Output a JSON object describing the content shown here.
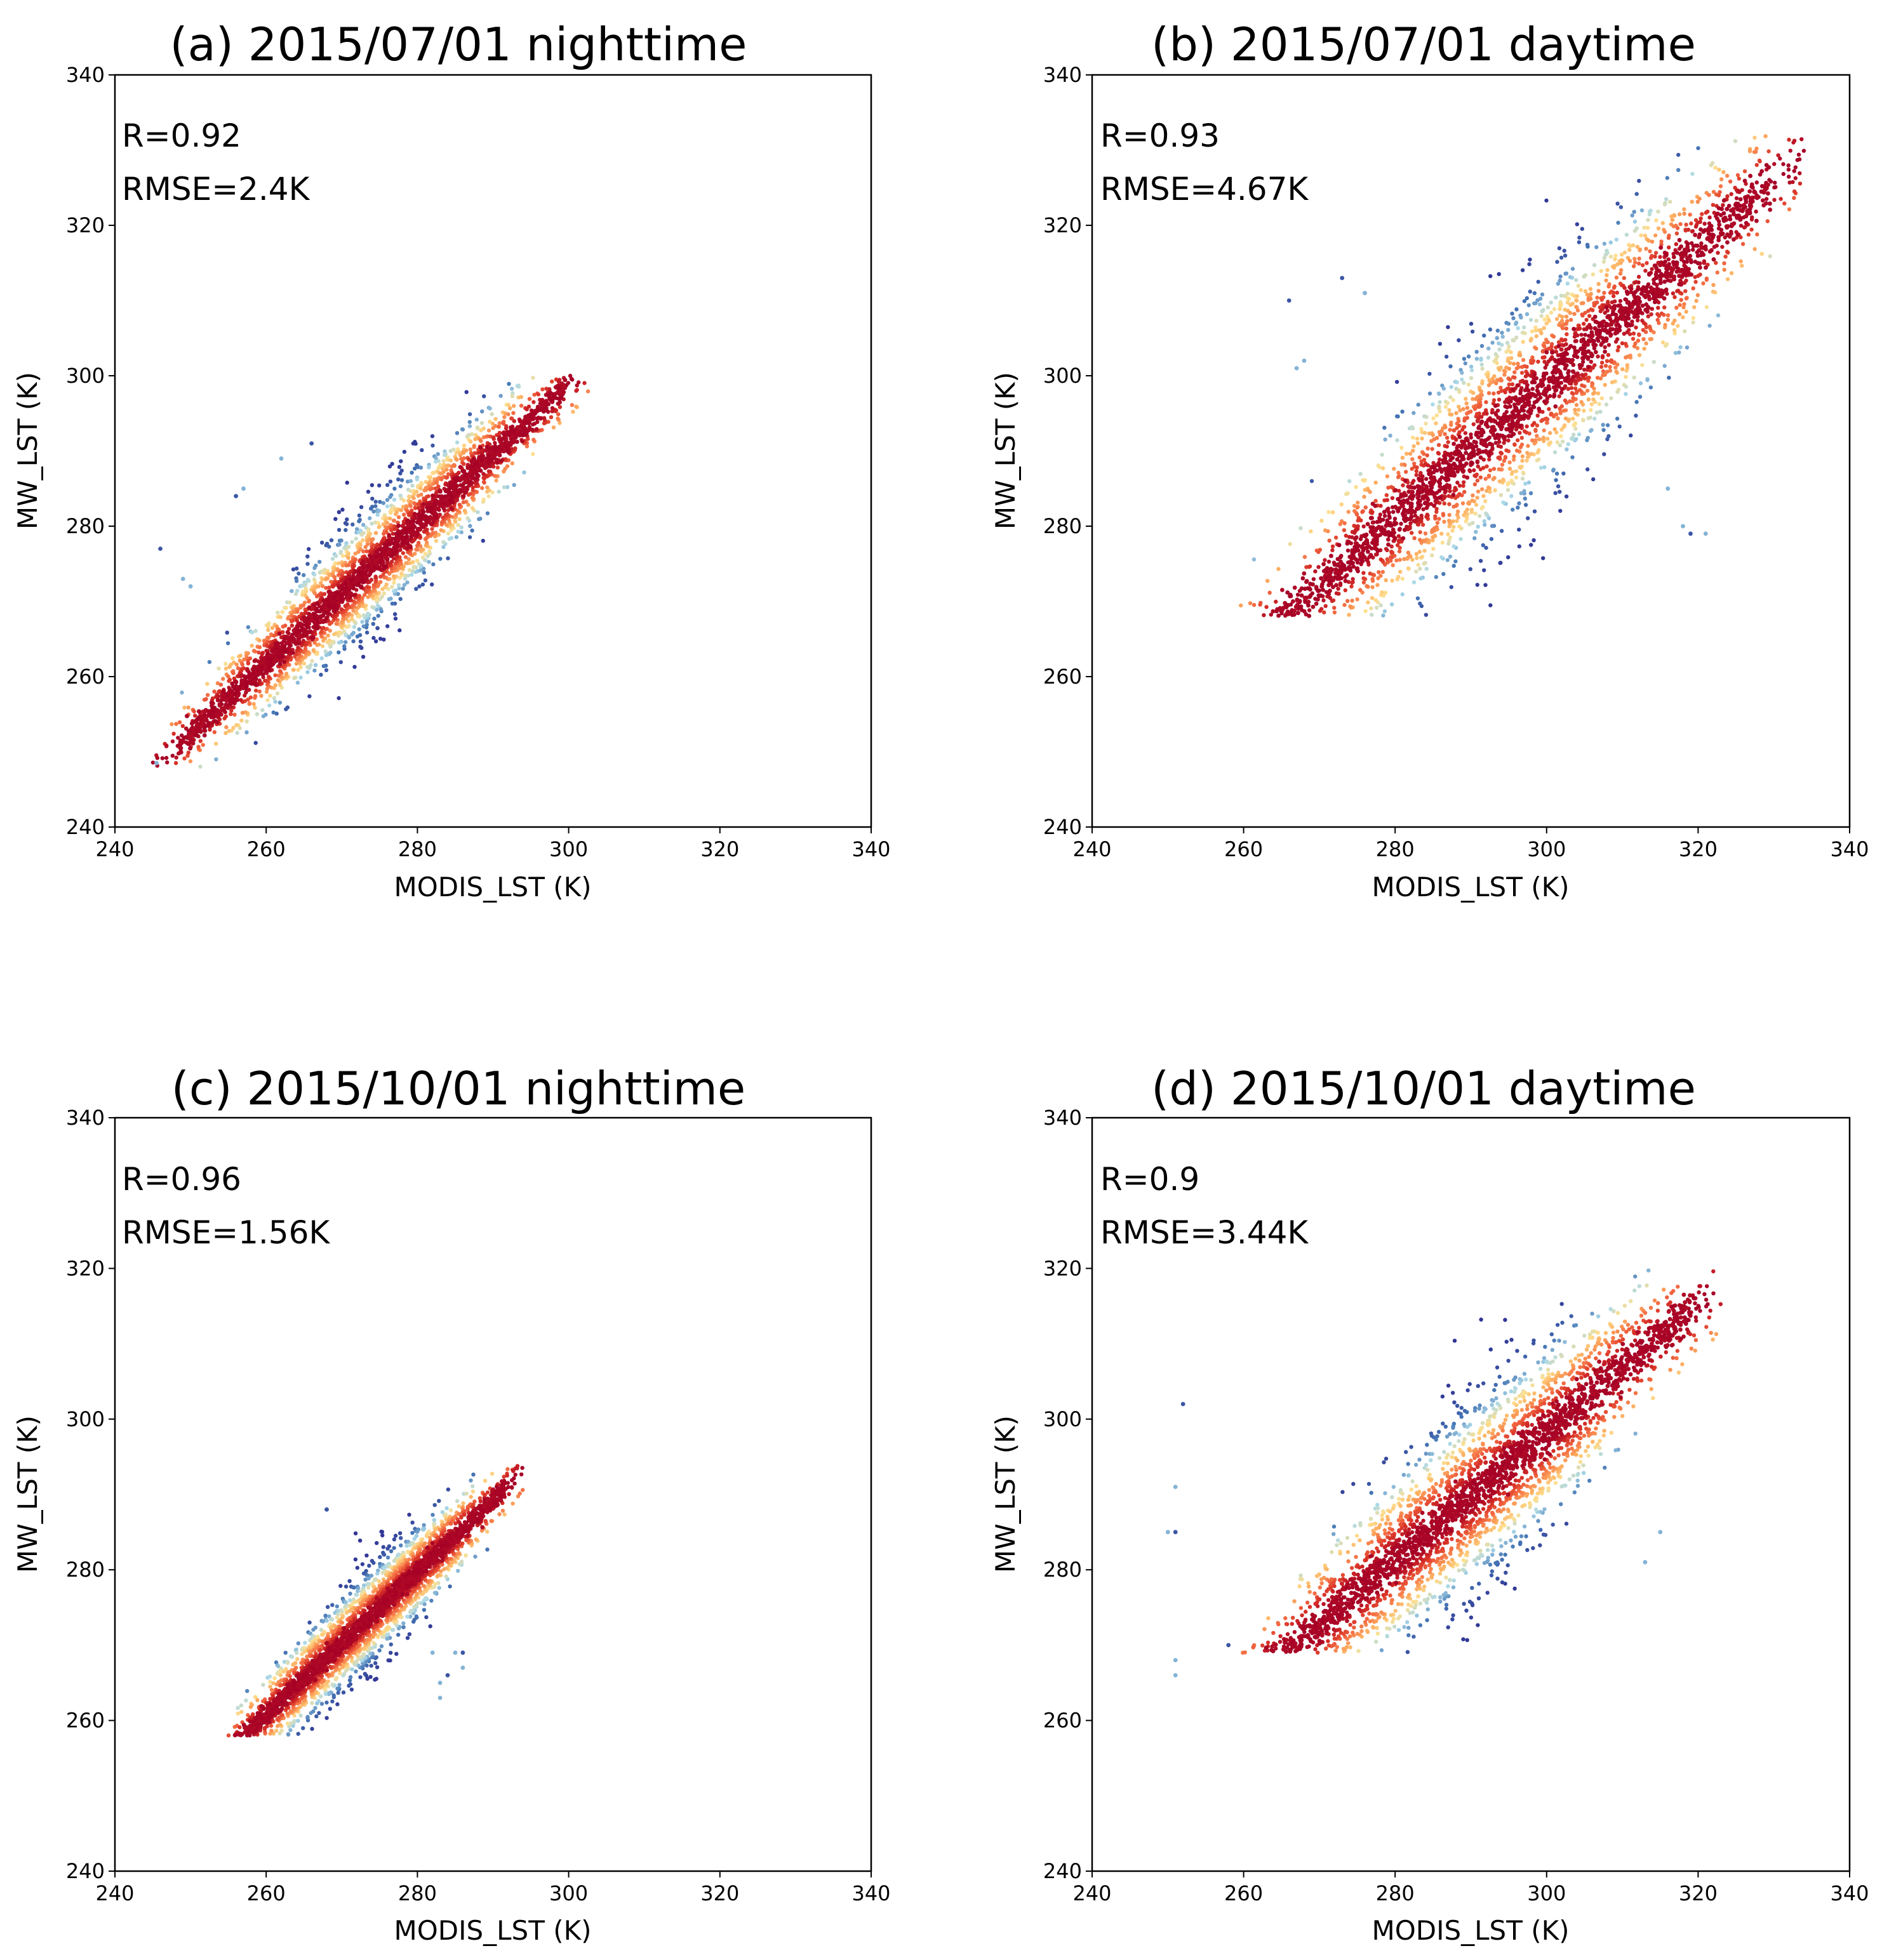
{
  "chart_data": [
    {
      "type": "scatter",
      "title": "(a) 2015/07/01 nighttime",
      "xlabel": "MODIS_LST (K)",
      "ylabel": "MW_LST (K)",
      "xlim": [
        240,
        340
      ],
      "ylim": [
        240,
        340
      ],
      "xticks": [
        "240",
        "260",
        "280",
        "300",
        "320",
        "340"
      ],
      "yticks": [
        "240",
        "260",
        "280",
        "300",
        "320",
        "340"
      ],
      "annotations": [
        "R=0.92",
        "RMSE=2.4K"
      ],
      "colormap": "density (blue → yellow → red)",
      "cloud": {
        "x_range": [
          245,
          303
        ],
        "y_range": [
          248,
          300
        ],
        "slope": 0.93,
        "intercept_at_x": [
          270,
          271
        ],
        "spread": 4.5
      },
      "outliers": [
        [
          246,
          277
        ],
        [
          249,
          273
        ],
        [
          250,
          272
        ],
        [
          256,
          284
        ],
        [
          257,
          285
        ],
        [
          262,
          289
        ],
        [
          266,
          291
        ],
        [
          245.5,
          248.5
        ]
      ]
    },
    {
      "type": "scatter",
      "title": "(b) 2015/07/01 daytime",
      "xlabel": "MODIS_LST (K)",
      "ylabel": "MW_LST (K)",
      "xlim": [
        240,
        340
      ],
      "ylim": [
        240,
        340
      ],
      "xticks": [
        "240",
        "260",
        "280",
        "300",
        "320",
        "340"
      ],
      "yticks": [
        "240",
        "260",
        "280",
        "300",
        "320",
        "340"
      ],
      "annotations": [
        "R=0.93",
        "RMSE=4.67K"
      ],
      "colormap": "density (blue → yellow → red)",
      "cloud": {
        "x_range": [
          259,
          334
        ],
        "y_range": [
          268,
          332
        ],
        "slope": 0.9,
        "intercept_at_x": [
          300,
          299
        ],
        "spread": 8
      },
      "outliers": [
        [
          266,
          310
        ],
        [
          267,
          301
        ],
        [
          268,
          302
        ],
        [
          273,
          313
        ],
        [
          276,
          311
        ],
        [
          318,
          280
        ],
        [
          319,
          279
        ],
        [
          321,
          279
        ],
        [
          316,
          285
        ]
      ]
    },
    {
      "type": "scatter",
      "title": "(c) 2015/10/01 nighttime",
      "xlabel": "MODIS_LST (K)",
      "ylabel": "MW_LST (K)",
      "xlim": [
        240,
        340
      ],
      "ylim": [
        240,
        340
      ],
      "xticks": [
        "240",
        "260",
        "280",
        "300",
        "320",
        "340"
      ],
      "yticks": [
        "240",
        "260",
        "280",
        "300",
        "320",
        "340"
      ],
      "annotations": [
        "R=0.96",
        "RMSE=1.56K"
      ],
      "colormap": "density (blue → yellow → red)",
      "cloud": {
        "x_range": [
          252,
          294
        ],
        "y_range": [
          258,
          294
        ],
        "slope": 0.95,
        "intercept_at_x": [
          275,
          275
        ],
        "spread": 3.5
      },
      "outliers": [
        [
          268,
          288
        ],
        [
          283,
          263
        ],
        [
          283,
          265
        ],
        [
          284,
          266
        ],
        [
          285,
          269
        ],
        [
          286,
          267
        ],
        [
          286,
          269
        ],
        [
          282,
          269
        ]
      ]
    },
    {
      "type": "scatter",
      "title": "(d) 2015/10/01 daytime",
      "xlabel": "MODIS_LST (K)",
      "ylabel": "MW_LST (K)",
      "xlim": [
        240,
        340
      ],
      "ylim": [
        240,
        340
      ],
      "xticks": [
        "240",
        "260",
        "280",
        "300",
        "320",
        "340"
      ],
      "yticks": [
        "240",
        "260",
        "280",
        "300",
        "320",
        "340"
      ],
      "annotations": [
        "R=0.9",
        "RMSE=3.44K"
      ],
      "colormap": "density (blue → yellow → red)",
      "cloud": {
        "x_range": [
          258,
          323
        ],
        "y_range": [
          269,
          320
        ],
        "slope": 0.85,
        "intercept_at_x": [
          295,
          294
        ],
        "spread": 7
      },
      "outliers": [
        [
          252,
          302
        ],
        [
          251,
          291
        ],
        [
          250,
          285
        ],
        [
          251,
          285
        ],
        [
          251,
          268
        ],
        [
          251,
          266
        ],
        [
          258,
          270
        ],
        [
          315,
          285
        ],
        [
          313,
          281
        ]
      ]
    }
  ]
}
